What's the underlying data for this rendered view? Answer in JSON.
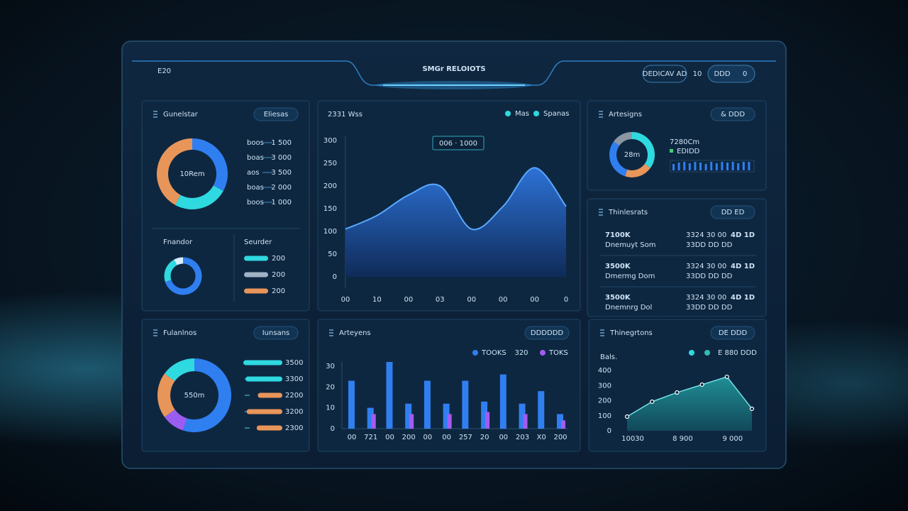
{
  "header": {
    "code": "E20",
    "title": "SMGr RELOIOTS",
    "buttons": [
      "DEDICAV AD",
      "10",
      "DDD",
      "0"
    ]
  },
  "panels": [
    {
      "title": "Gunelstar",
      "button": "Eliesas",
      "rows": [
        {
          "label": "boos",
          "value": "1 500"
        },
        {
          "label": "boas",
          "value": "3 000"
        },
        {
          "label": "aos",
          "value": "3 500"
        },
        {
          "label": "boas",
          "value": "2 000"
        },
        {
          "label": "boos",
          "value": "1 000"
        }
      ],
      "subtitles": [
        "Fnandor",
        "Seurder"
      ]
    },
    {
      "title": "2331 Wss",
      "legend": [
        "Mas",
        "Spanas"
      ],
      "tooltip": "006 · 1000"
    },
    {
      "title": "Artesigns",
      "button": "& DDD",
      "stat": "7280Cm",
      "note": "EDIDD"
    },
    {
      "title": "Thinlesrats",
      "button": "DD ED",
      "rows": [
        {
          "value": "7100K",
          "sub": "Dnemuyt Som",
          "mid": "3324 30 00",
          "mid2": "33DD DD DD",
          "icon": "4D 1D"
        },
        {
          "value": "3500K",
          "sub": "Dmermg Dom",
          "mid": "3324 30 00",
          "mid2": "33DD DD DD",
          "icon": "4D 1D"
        },
        {
          "value": "3500K",
          "sub": "Dnemnrg Dol",
          "mid": "3324 30 00",
          "mid2": "33DD DD DD",
          "icon": "4D 1D"
        }
      ]
    },
    {
      "title": "Fulanlnos",
      "button": "Iunsans"
    },
    {
      "title": "Arteyens",
      "button": "DDDDDD",
      "legend_note": "320"
    },
    {
      "title": "Thinegrtons",
      "button": "DE DDD",
      "legend": "E 880 DDD",
      "ylabel": "Bals."
    }
  ],
  "chart_data": [
    {
      "type": "donut",
      "center": "10Rem",
      "values": [
        33,
        25,
        42
      ],
      "colors": [
        "#2f7ff0",
        "#2fd9e0",
        "#e8955a"
      ]
    },
    {
      "type": "donut",
      "values": [
        70,
        22,
        8
      ],
      "colors": [
        "#2f7ff0",
        "#2fd9e0",
        "#d8eefc"
      ]
    },
    {
      "type": "hbar",
      "values": [
        200,
        200,
        200
      ],
      "colors": [
        "#2fd9e0",
        "#9fb3c4",
        "#e8955a"
      ]
    },
    {
      "type": "area",
      "categories": [
        "00",
        "10",
        "00",
        "03",
        "00",
        "00",
        "00",
        "0"
      ],
      "values": [
        105,
        135,
        180,
        200,
        105,
        155,
        240,
        155
      ],
      "ylim": [
        0,
        300
      ],
      "yticks": [
        0,
        50,
        100,
        150,
        200,
        250,
        300
      ],
      "color": "#58a8ff"
    },
    {
      "type": "donut",
      "center": "28m",
      "values": [
        35,
        20,
        30,
        15
      ],
      "colors": [
        "#2fd9e0",
        "#e8955a",
        "#2f7ff0",
        "#8a96a3"
      ]
    },
    {
      "type": "bar",
      "values": [
        9,
        11,
        12,
        10,
        12,
        11,
        9,
        12,
        10,
        12,
        11,
        12,
        10,
        12,
        12
      ],
      "color": "#2f7ff0"
    },
    {
      "type": "donut",
      "center": "550m",
      "values": [
        55,
        10,
        20,
        15
      ],
      "colors": [
        "#2f7ff0",
        "#9b5cf0",
        "#e8955a",
        "#2fd9e0"
      ]
    },
    {
      "type": "hbar",
      "values": [
        3500,
        3300,
        2200,
        3200,
        2300
      ],
      "colors": [
        "#2fd9e0",
        "#2fd9e0",
        "#e8955a",
        "#e8955a",
        "#e8955a"
      ]
    },
    {
      "type": "bar",
      "categories": [
        "00",
        "721",
        "00",
        "200",
        "00",
        "00",
        "257",
        "20",
        "00",
        "203",
        "X0",
        "200"
      ],
      "series": [
        {
          "name": "TOOKS",
          "color": "#2f7ff0",
          "values": [
            23,
            10,
            32,
            12,
            23,
            12,
            23,
            13,
            26,
            12,
            18,
            7
          ]
        },
        {
          "name": "TOKS",
          "color": "#a35cf0",
          "values": [
            null,
            7,
            null,
            7,
            null,
            7,
            null,
            8,
            null,
            7,
            null,
            4
          ]
        }
      ],
      "ylim": [
        0,
        32
      ],
      "yticks": [
        0,
        10,
        20,
        30
      ]
    },
    {
      "type": "line",
      "categories": [
        "10030",
        null,
        "8 900",
        null,
        "9 000",
        null
      ],
      "values": [
        94,
        193,
        254,
        306,
        358,
        146
      ],
      "ylim": [
        0,
        400
      ],
      "yticks": [
        0,
        100,
        200,
        300,
        400
      ],
      "color": "#6fe0e6"
    }
  ]
}
